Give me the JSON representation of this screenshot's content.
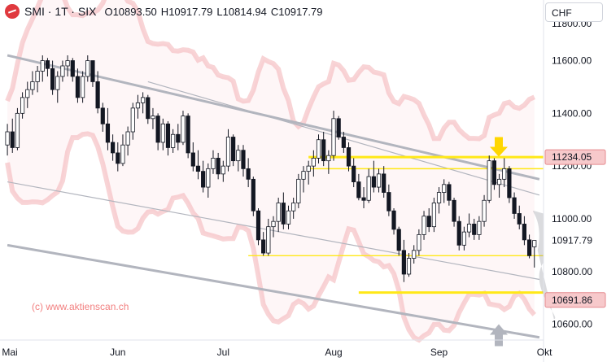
{
  "header": {
    "symbol": "SMI · 1T · SIX",
    "open_label": "O",
    "open": "10893.50",
    "high_label": "H",
    "high": "10917.79",
    "low_label": "L",
    "low": "10814.94",
    "close_label": "C",
    "close": "10917.79"
  },
  "currency": "CHF",
  "watermark": "(c) www.aktienscan.ch",
  "colors": {
    "up": "#ffffff",
    "down": "#131722",
    "band": "#f3b8bb",
    "channel": "#b2b5be",
    "support": "#ffe817",
    "arrow_yellow": "#ffd600",
    "arrow_gray": "#b2b5be",
    "badge_bg": "#f7c9cb",
    "badge_border": "#e58a8f"
  },
  "icons": {
    "logo": "aktienscan-logo-icon",
    "resistance_arrow": "arrow-down-icon",
    "support_arrow": "arrow-up-icon"
  },
  "price_badges": [
    {
      "value": "11234.05",
      "kind": "resistance"
    },
    {
      "value": "10691.86",
      "kind": "support"
    }
  ],
  "chart_data": {
    "type": "candlestick",
    "y_axis_ticks": [
      "11600.00",
      "11400.00",
      "11200.00",
      "11000.00",
      "10800.00",
      "10600.00"
    ],
    "y_axis_top_partial": "11800.00",
    "last_price_label": "10917.79",
    "x_axis_labels": [
      "Mai",
      "Jun",
      "Jul",
      "Aug",
      "Sep",
      "Okt"
    ],
    "ylim": [
      10540,
      11830
    ],
    "candles": [
      [
        11280,
        11360,
        11240,
        11330
      ],
      [
        11330,
        11380,
        11250,
        11270
      ],
      [
        11270,
        11420,
        11260,
        11400
      ],
      [
        11400,
        11480,
        11380,
        11460
      ],
      [
        11460,
        11520,
        11420,
        11490
      ],
      [
        11490,
        11560,
        11470,
        11520
      ],
      [
        11520,
        11580,
        11480,
        11560
      ],
      [
        11560,
        11620,
        11520,
        11600
      ],
      [
        11600,
        11610,
        11540,
        11570
      ],
      [
        11570,
        11600,
        11470,
        11490
      ],
      [
        11490,
        11560,
        11440,
        11540
      ],
      [
        11540,
        11600,
        11520,
        11580
      ],
      [
        11580,
        11620,
        11540,
        11600
      ],
      [
        11600,
        11610,
        11520,
        11540
      ],
      [
        11540,
        11570,
        11440,
        11460
      ],
      [
        11460,
        11560,
        11440,
        11540
      ],
      [
        11540,
        11620,
        11520,
        11600
      ],
      [
        11600,
        11600,
        11500,
        11520
      ],
      [
        11520,
        11560,
        11400,
        11420
      ],
      [
        11420,
        11440,
        11330,
        11360
      ],
      [
        11360,
        11420,
        11260,
        11290
      ],
      [
        11290,
        11320,
        11220,
        11250
      ],
      [
        11250,
        11290,
        11180,
        11210
      ],
      [
        11210,
        11320,
        11200,
        11280
      ],
      [
        11280,
        11350,
        11240,
        11330
      ],
      [
        11330,
        11440,
        11300,
        11420
      ],
      [
        11420,
        11470,
        11380,
        11440
      ],
      [
        11440,
        11480,
        11400,
        11460
      ],
      [
        11460,
        11470,
        11360,
        11380
      ],
      [
        11380,
        11420,
        11340,
        11390
      ],
      [
        11390,
        11400,
        11260,
        11290
      ],
      [
        11290,
        11380,
        11260,
        11360
      ],
      [
        11360,
        11370,
        11240,
        11270
      ],
      [
        11270,
        11340,
        11250,
        11320
      ],
      [
        11320,
        11360,
        11260,
        11290
      ],
      [
        11290,
        11410,
        11280,
        11390
      ],
      [
        11390,
        11400,
        11230,
        11250
      ],
      [
        11250,
        11290,
        11180,
        11200
      ],
      [
        11200,
        11260,
        11150,
        11180
      ],
      [
        11180,
        11220,
        11100,
        11120
      ],
      [
        11120,
        11210,
        11080,
        11190
      ],
      [
        11190,
        11260,
        11170,
        11230
      ],
      [
        11230,
        11250,
        11150,
        11170
      ],
      [
        11170,
        11220,
        11140,
        11200
      ],
      [
        11200,
        11340,
        11180,
        11310
      ],
      [
        11310,
        11320,
        11200,
        11220
      ],
      [
        11220,
        11280,
        11180,
        11260
      ],
      [
        11260,
        11280,
        11160,
        11190
      ],
      [
        11190,
        11230,
        11120,
        11150
      ],
      [
        11150,
        11160,
        11010,
        11030
      ],
      [
        11030,
        11040,
        10900,
        10920
      ],
      [
        10920,
        10950,
        10860,
        10870
      ],
      [
        10870,
        11000,
        10860,
        10970
      ],
      [
        10970,
        11010,
        10930,
        10990
      ],
      [
        10990,
        11080,
        10950,
        11060
      ],
      [
        11060,
        11100,
        10960,
        10980
      ],
      [
        10980,
        11050,
        10960,
        11030
      ],
      [
        11030,
        11080,
        11000,
        11060
      ],
      [
        11060,
        11170,
        11040,
        11150
      ],
      [
        11150,
        11200,
        11100,
        11180
      ],
      [
        11180,
        11220,
        11130,
        11200
      ],
      [
        11200,
        11260,
        11160,
        11230
      ],
      [
        11230,
        11320,
        11210,
        11300
      ],
      [
        11300,
        11330,
        11200,
        11220
      ],
      [
        11220,
        11260,
        11170,
        11240
      ],
      [
        11240,
        11410,
        11220,
        11380
      ],
      [
        11380,
        11390,
        11300,
        11310
      ],
      [
        11310,
        11330,
        11250,
        11270
      ],
      [
        11270,
        11290,
        11180,
        11200
      ],
      [
        11200,
        11230,
        11120,
        11140
      ],
      [
        11140,
        11170,
        11070,
        11080
      ],
      [
        11080,
        11120,
        11040,
        11070
      ],
      [
        11070,
        11190,
        11060,
        11160
      ],
      [
        11160,
        11220,
        11100,
        11120
      ],
      [
        11120,
        11190,
        11100,
        11170
      ],
      [
        11170,
        11200,
        11080,
        11100
      ],
      [
        11100,
        11130,
        11010,
        11030
      ],
      [
        11030,
        11040,
        10940,
        10960
      ],
      [
        10960,
        10970,
        10860,
        10880
      ],
      [
        10880,
        10920,
        10760,
        10790
      ],
      [
        10790,
        10870,
        10780,
        10850
      ],
      [
        10850,
        10900,
        10830,
        10880
      ],
      [
        10880,
        10960,
        10860,
        10940
      ],
      [
        10940,
        11030,
        10920,
        11010
      ],
      [
        11010,
        11040,
        10950,
        10970
      ],
      [
        10970,
        11080,
        10950,
        11060
      ],
      [
        11060,
        11120,
        11020,
        11100
      ],
      [
        11100,
        11150,
        11060,
        11130
      ],
      [
        11130,
        11140,
        11050,
        11070
      ],
      [
        11070,
        11080,
        10970,
        10990
      ],
      [
        10990,
        11010,
        10880,
        10900
      ],
      [
        10900,
        10970,
        10880,
        10950
      ],
      [
        10950,
        11020,
        10930,
        10980
      ],
      [
        10980,
        11000,
        10920,
        10940
      ],
      [
        10940,
        11010,
        10920,
        10990
      ],
      [
        10990,
        11090,
        10970,
        11070
      ],
      [
        11070,
        11240,
        11060,
        11220
      ],
      [
        11220,
        11230,
        11110,
        11130
      ],
      [
        11130,
        11170,
        11080,
        11150
      ],
      [
        11150,
        11230,
        11120,
        11190
      ],
      [
        11190,
        11200,
        11060,
        11080
      ],
      [
        11080,
        11100,
        11000,
        11020
      ],
      [
        11020,
        11050,
        10960,
        10980
      ],
      [
        10980,
        11010,
        10900,
        10920
      ],
      [
        10920,
        10940,
        10850,
        10860
      ],
      [
        10893.5,
        10917.79,
        10814.94,
        10917.79
      ]
    ],
    "channel_outer_top": [
      [
        0,
        11620
      ],
      [
        106,
        11150
      ]
    ],
    "channel_outer_bottom": [
      [
        0,
        10900
      ],
      [
        106,
        10550
      ]
    ],
    "channel_inner_top": [
      [
        28,
        11520
      ],
      [
        106,
        11090
      ]
    ],
    "channel_inner_bottom": [
      [
        0,
        11140
      ],
      [
        106,
        10770
      ]
    ],
    "yellow_levels": [
      {
        "value": 11234.05,
        "from": 60,
        "to": 106
      },
      {
        "value": 11190,
        "from": 60,
        "to": 106
      },
      {
        "value": 10860,
        "from": 48,
        "to": 106
      },
      {
        "value": 10720,
        "from": 70,
        "to": 106
      }
    ]
  }
}
